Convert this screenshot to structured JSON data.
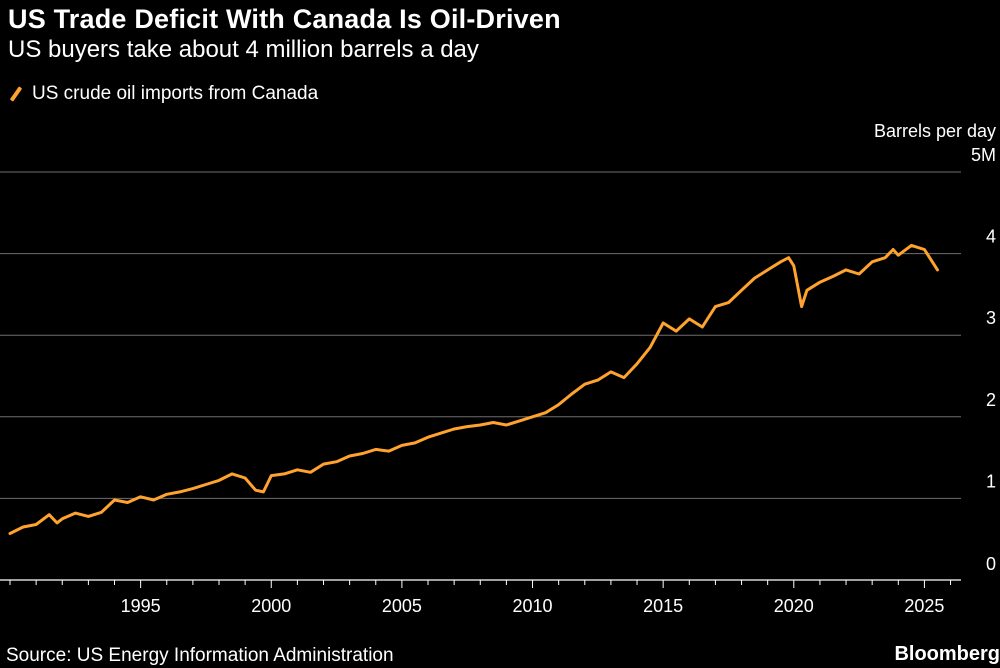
{
  "title": "US Trade Deficit With Canada Is Oil-Driven",
  "subtitle": "US buyers take about 4 million barrels a day",
  "legend_label": "US crude oil imports from Canada",
  "source": "Source: US Energy Information Administration",
  "brand": "Bloomberg",
  "colors": {
    "line": "#ffa32e",
    "grid": "#6e6e6e",
    "background": "#000000"
  },
  "chart_data": {
    "type": "line",
    "title": "US Trade Deficit With Canada Is Oil-Driven",
    "subtitle": "US buyers take about 4 million barrels a day",
    "ylabel": "Barrels per day",
    "ylim": [
      0,
      5
    ],
    "xlim": [
      1990,
      2026.4
    ],
    "y_ticks": [
      {
        "value": 5,
        "label": "5M"
      },
      {
        "value": 4,
        "label": "4"
      },
      {
        "value": 3,
        "label": "3"
      },
      {
        "value": 2,
        "label": "2"
      },
      {
        "value": 1,
        "label": "1"
      },
      {
        "value": 0,
        "label": "0"
      }
    ],
    "x_ticks": [
      {
        "value": 1995,
        "label": "1995"
      },
      {
        "value": 2000,
        "label": "2000"
      },
      {
        "value": 2005,
        "label": "2005"
      },
      {
        "value": 2010,
        "label": "2010"
      },
      {
        "value": 2015,
        "label": "2015"
      },
      {
        "value": 2020,
        "label": "2020"
      },
      {
        "value": 2025,
        "label": "2025"
      }
    ],
    "series": [
      {
        "name": "US crude oil imports from Canada",
        "unit": "million barrels per day",
        "x": [
          1990.0,
          1990.5,
          1991.0,
          1991.5,
          1991.8,
          1992.0,
          1992.5,
          1993.0,
          1993.5,
          1994.0,
          1994.5,
          1995.0,
          1995.5,
          1996.0,
          1996.5,
          1997.0,
          1997.5,
          1998.0,
          1998.5,
          1999.0,
          1999.4,
          1999.7,
          2000.0,
          2000.5,
          2001.0,
          2001.5,
          2002.0,
          2002.5,
          2003.0,
          2003.5,
          2004.0,
          2004.5,
          2005.0,
          2005.5,
          2006.0,
          2006.5,
          2007.0,
          2007.5,
          2008.0,
          2008.5,
          2009.0,
          2009.5,
          2010.0,
          2010.5,
          2011.0,
          2011.5,
          2012.0,
          2012.5,
          2013.0,
          2013.5,
          2014.0,
          2014.5,
          2015.0,
          2015.5,
          2016.0,
          2016.5,
          2017.0,
          2017.5,
          2018.0,
          2018.5,
          2019.0,
          2019.5,
          2019.8,
          2020.0,
          2020.3,
          2020.5,
          2021.0,
          2021.5,
          2022.0,
          2022.5,
          2023.0,
          2023.5,
          2023.8,
          2024.0,
          2024.5,
          2025.0,
          2025.3,
          2025.5
        ],
        "values": [
          0.57,
          0.65,
          0.68,
          0.8,
          0.7,
          0.75,
          0.82,
          0.78,
          0.83,
          0.98,
          0.95,
          1.02,
          0.98,
          1.05,
          1.08,
          1.12,
          1.17,
          1.22,
          1.3,
          1.25,
          1.1,
          1.08,
          1.28,
          1.3,
          1.35,
          1.32,
          1.42,
          1.45,
          1.52,
          1.55,
          1.6,
          1.58,
          1.65,
          1.68,
          1.75,
          1.8,
          1.85,
          1.88,
          1.9,
          1.93,
          1.9,
          1.95,
          2.0,
          2.05,
          2.15,
          2.28,
          2.4,
          2.45,
          2.55,
          2.48,
          2.65,
          2.85,
          3.15,
          3.05,
          3.2,
          3.1,
          3.35,
          3.4,
          3.55,
          3.7,
          3.8,
          3.9,
          3.95,
          3.85,
          3.35,
          3.55,
          3.65,
          3.72,
          3.8,
          3.75,
          3.9,
          3.95,
          4.05,
          3.98,
          4.1,
          4.05,
          3.9,
          3.8
        ]
      }
    ]
  }
}
